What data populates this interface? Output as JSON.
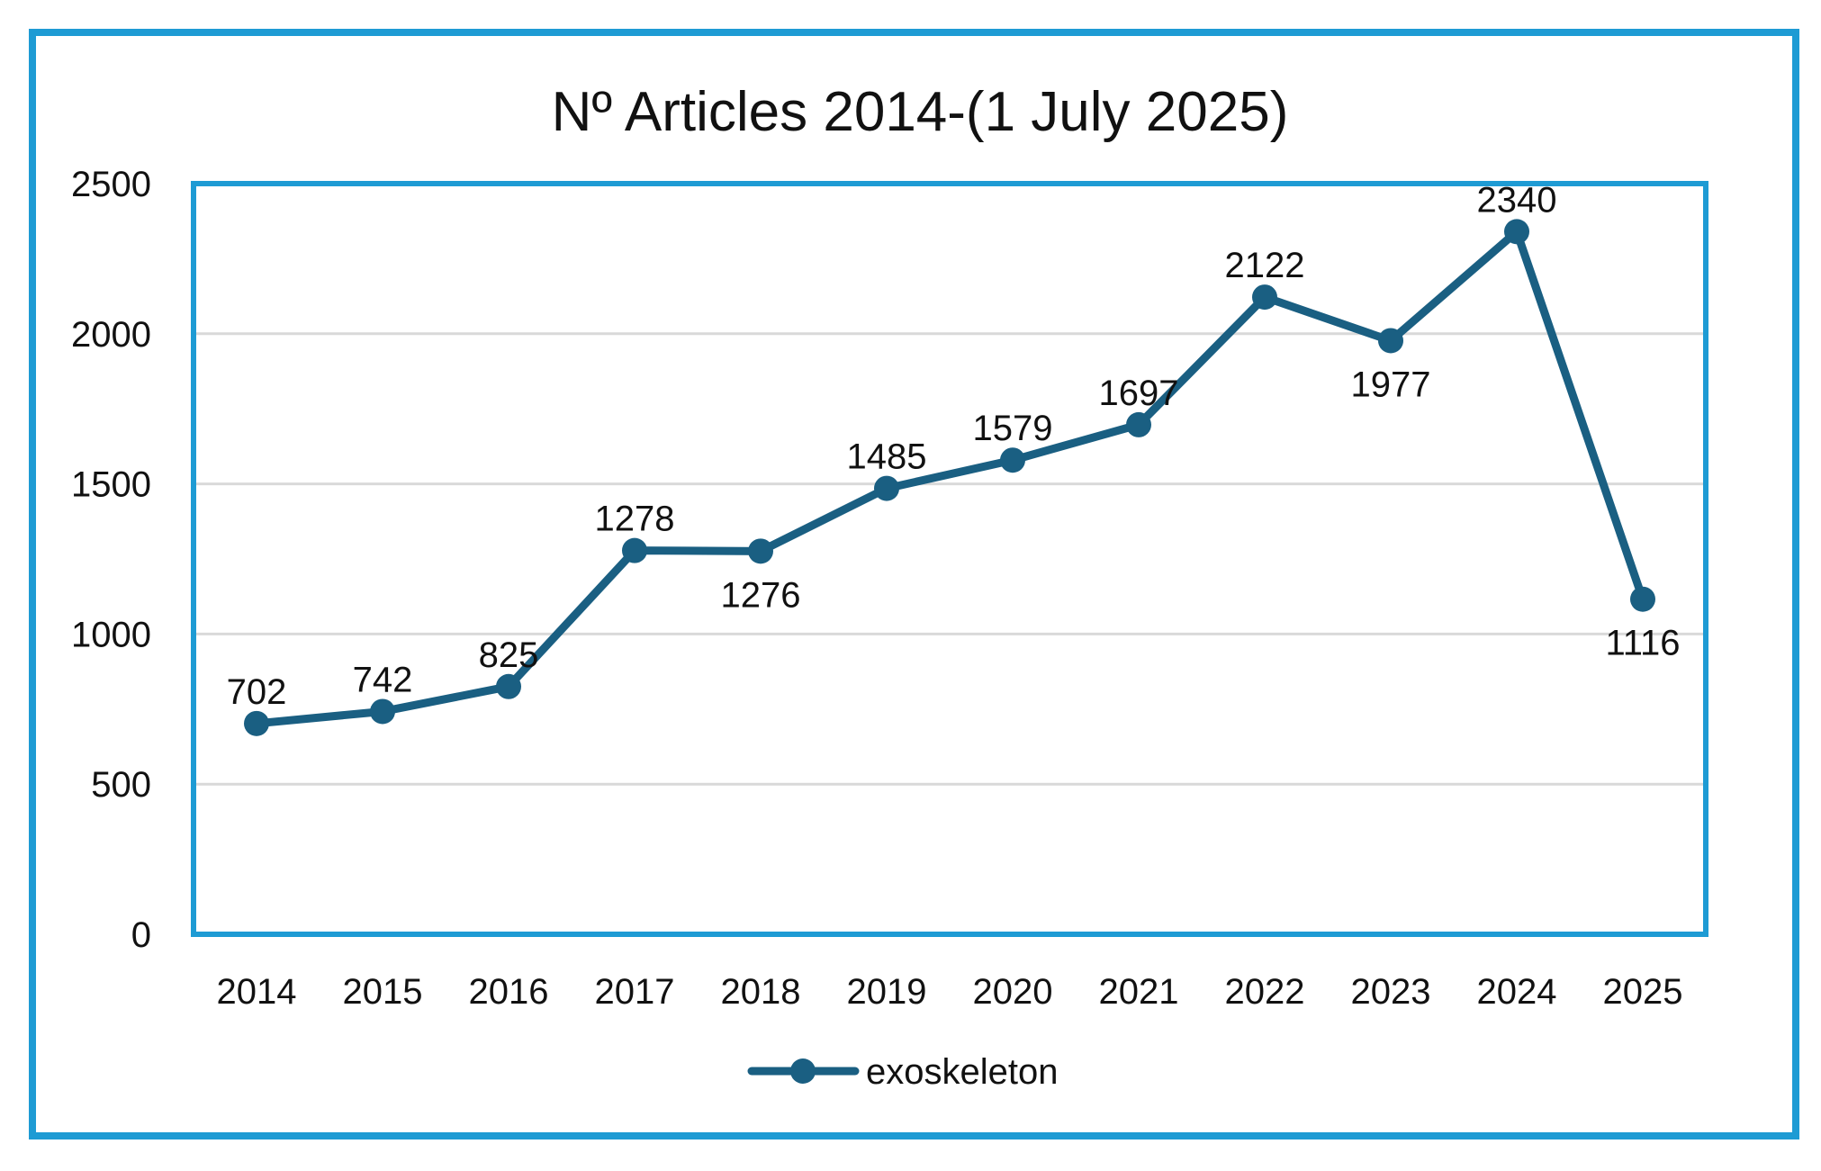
{
  "chart_data": {
    "type": "line",
    "title": "Nº Articles 2014-(1 July 2025)",
    "xlabel": "",
    "ylabel": "",
    "categories": [
      "2014",
      "2015",
      "2016",
      "2017",
      "2018",
      "2019",
      "2020",
      "2021",
      "2022",
      "2023",
      "2024",
      "2025"
    ],
    "series": [
      {
        "name": "exoskeleton",
        "values": [
          702,
          742,
          825,
          1278,
          1276,
          1485,
          1579,
          1697,
          2122,
          1977,
          2340,
          1116
        ],
        "label_positions": [
          "above",
          "above",
          "above",
          "above",
          "below",
          "above",
          "above",
          "above",
          "above",
          "below",
          "above",
          "below"
        ]
      }
    ],
    "ylim": [
      0,
      2500
    ],
    "yticks": [
      "0",
      "500",
      "1000",
      "1500",
      "2000",
      "2500"
    ],
    "grid": true,
    "legend": "bottom-center",
    "colors": {
      "line": "#1a5f82",
      "frame": "#1e9bd4",
      "plot_border": "#1e9bd4",
      "gridline": "#d9d9d9"
    }
  }
}
